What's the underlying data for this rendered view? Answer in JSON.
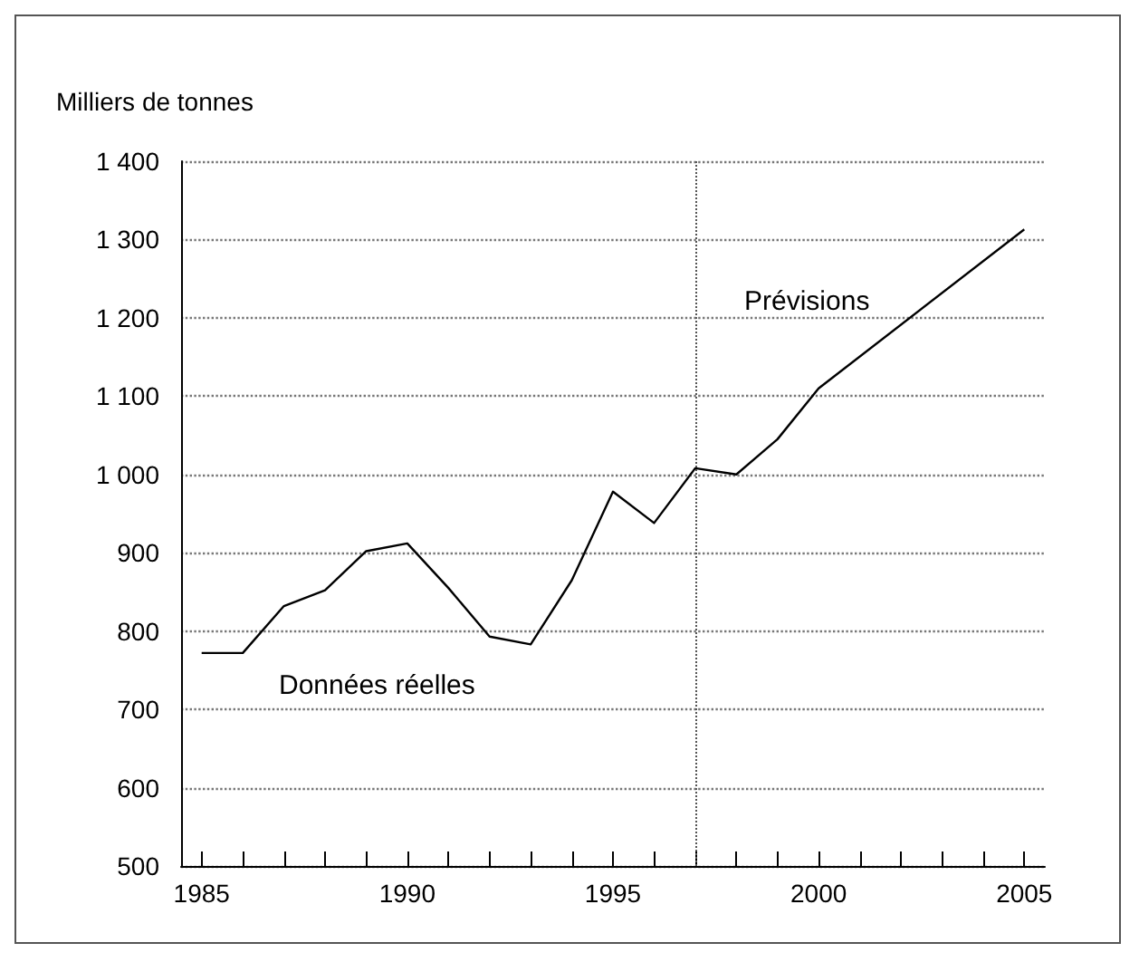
{
  "chart_data": {
    "type": "line",
    "ylabel": "Milliers de tonnes",
    "x": [
      1985,
      1986,
      1987,
      1988,
      1989,
      1990,
      1991,
      1992,
      1993,
      1994,
      1995,
      1996,
      1997,
      1998,
      1999,
      2000,
      2005
    ],
    "series": [
      {
        "color": "#000000",
        "values": [
          772,
          772,
          832,
          852,
          902,
          912,
          855,
          793,
          783,
          865,
          978,
          938,
          1008,
          1000,
          1045,
          1110,
          1313
        ]
      }
    ],
    "xlim": [
      1984.5,
      2005.5
    ],
    "xticks": [
      1985,
      {
        "value": 1986,
        "label": null
      },
      {
        "value": 1987,
        "label": null
      },
      {
        "value": 1988,
        "label": null
      },
      {
        "value": 1989,
        "label": null
      },
      1990,
      {
        "value": 1991,
        "label": null
      },
      {
        "value": 1992,
        "label": null
      },
      {
        "value": 1993,
        "label": null
      },
      {
        "value": 1994,
        "label": null
      },
      1995,
      {
        "value": 1996,
        "label": null
      },
      {
        "value": 1997,
        "label": null
      },
      {
        "value": 1998,
        "label": null
      },
      {
        "value": 1999,
        "label": null
      },
      2000,
      {
        "value": 2001,
        "label": null
      },
      {
        "value": 2002,
        "label": null
      },
      {
        "value": 2003,
        "label": null
      },
      {
        "value": 2004,
        "label": null
      },
      2005
    ],
    "ylim": [
      500,
      1400
    ],
    "yticks": [
      500,
      600,
      700,
      800,
      900,
      {
        "value": 1000,
        "label": "1 000"
      },
      {
        "value": 1100,
        "label": "1 100"
      },
      {
        "value": 1200,
        "label": "1 200"
      },
      {
        "value": 1300,
        "label": "1 300"
      },
      {
        "value": 1400,
        "label": "1 400"
      }
    ],
    "ref_lines": [
      {
        "axis": "x",
        "value": 1997,
        "line_style": "dotted",
        "color": "#555555"
      }
    ],
    "annotations": [
      "Données réelles",
      "Prévisions"
    ],
    "grid": "y",
    "marker": "none",
    "line_style": "solid"
  }
}
